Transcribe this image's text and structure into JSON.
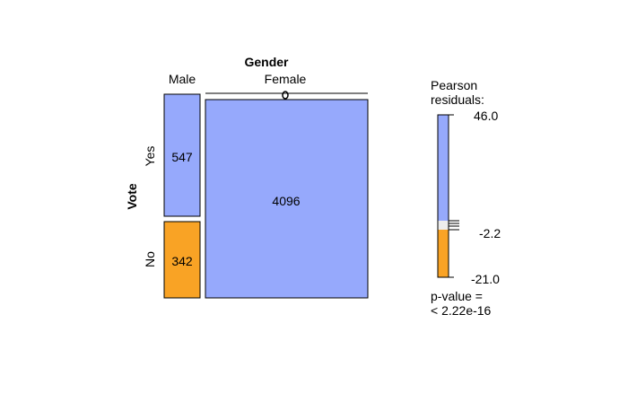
{
  "chart_data": {
    "type": "mosaic",
    "column_variable": "Gender",
    "row_variable": "Vote",
    "columns": [
      "Male",
      "Female"
    ],
    "rows": [
      "Yes",
      "No"
    ],
    "counts": [
      {
        "column": "Male",
        "row": "Yes",
        "value": 547,
        "label": "547",
        "color": "#96a9fc"
      },
      {
        "column": "Male",
        "row": "No",
        "value": 342,
        "label": "342",
        "color": "#f9a325"
      },
      {
        "column": "Female",
        "row": "Yes",
        "value": 4096,
        "label": "4096",
        "color": "#96a9fc"
      },
      {
        "column": "Female",
        "row": "No",
        "value": 0,
        "label": "0",
        "color": "#96a9fc"
      }
    ],
    "legend": {
      "title_line1": "Pearson",
      "title_line2": "residuals:",
      "max": 46.0,
      "max_label": "46.0",
      "cutoff": -2.2,
      "cutoff_label": "-2.2",
      "min": -21.0,
      "min_label": "-21.0",
      "pvalue_line1": "p-value =",
      "pvalue_line2": "< 2.22e-16",
      "positive_color": "#96a9fc",
      "negative_color": "#f9a325",
      "neutral_color": "#ededed"
    }
  }
}
